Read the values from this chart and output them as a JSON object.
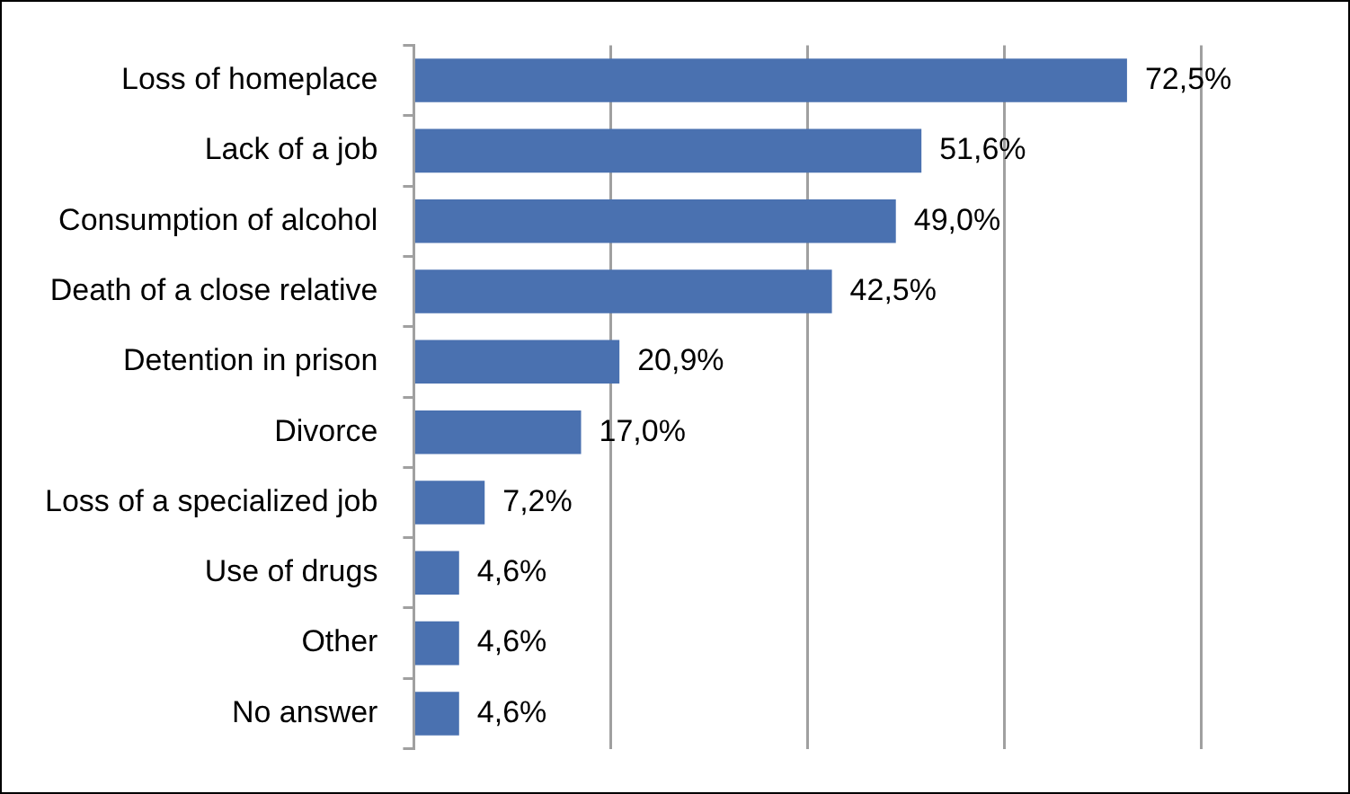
{
  "chart_data": {
    "type": "bar",
    "orientation": "horizontal",
    "categories": [
      "Loss of homeplace",
      "Lack of a job",
      "Consumption of alcohol",
      "Death of a close relative",
      "Detention in prison",
      "Divorce",
      "Loss of a specialized job",
      "Use of drugs",
      "Other",
      "No answer"
    ],
    "values": [
      72.5,
      51.6,
      49.0,
      42.5,
      20.9,
      17.0,
      7.2,
      4.6,
      4.6,
      4.6
    ],
    "value_labels": [
      "72,5%",
      "51,6%",
      "49,0%",
      "42,5%",
      "20,9%",
      "17,0%",
      "7,2%",
      "4,6%",
      "4,6%",
      "4,6%"
    ],
    "color": "#4a71b0",
    "xlim": [
      0,
      80
    ],
    "xticks": [
      {
        "value": 0,
        "label": null
      },
      {
        "value": 20,
        "label": null
      },
      {
        "value": 40,
        "label": null
      },
      {
        "value": 60,
        "label": null
      },
      {
        "value": 80,
        "label": null
      }
    ],
    "tick_labels": "y",
    "grid": "x",
    "legend": false
  }
}
